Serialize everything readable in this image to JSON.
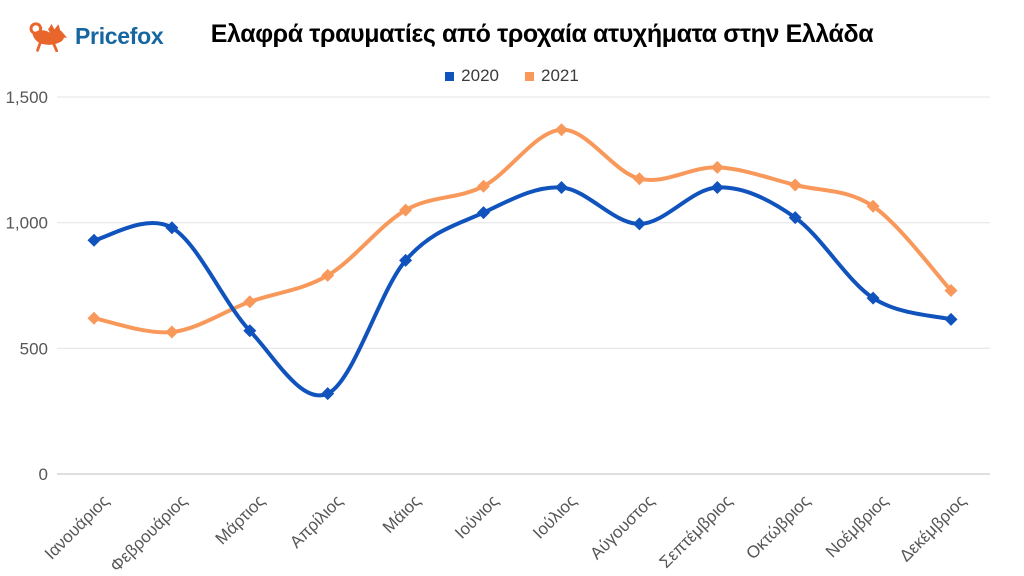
{
  "header": {
    "logo_text": "Pricefox",
    "title": "Ελαφρά τραυματίες από τροχαία ατυχήματα στην Ελλάδα"
  },
  "colors": {
    "background": "#FFFFFF",
    "title_text": "#000000",
    "logo_orange": "#E8652C",
    "logo_text_blue": "#18669F",
    "grid": "#E4E4E4",
    "axis_line": "#BFBFBF",
    "tick_text": "#575757",
    "legend_text": "#3C3C3C"
  },
  "chart_data": {
    "type": "line",
    "title": "Ελαφρά τραυματίες από τροχαία ατυχήματα στην Ελλάδα",
    "categories": [
      "Ιανουάριος",
      "Φεβρουάριος",
      "Μάρτιος",
      "Απρίλιος",
      "Μάιος",
      "Ιούνιος",
      "Ιούλιος",
      "Αύγουστος",
      "Σεπτέμβριος",
      "Οκτώβριος",
      "Νοέμβριος",
      "Δεκέμβριος"
    ],
    "series": [
      {
        "name": "2020",
        "color": "#1153BD",
        "values": [
          930,
          980,
          570,
          320,
          850,
          1040,
          1140,
          995,
          1140,
          1020,
          700,
          615
        ]
      },
      {
        "name": "2021",
        "color": "#F8995B",
        "values": [
          620,
          565,
          685,
          790,
          1050,
          1145,
          1370,
          1175,
          1220,
          1150,
          1065,
          730
        ]
      }
    ],
    "xlabel": "",
    "ylabel": "",
    "ylim": [
      0,
      1500
    ],
    "yticks": [
      0,
      500,
      1000,
      1500
    ],
    "ytick_labels": [
      "0",
      "500",
      "1,000",
      "1,500"
    ],
    "grid": "horizontal",
    "legend_position": "top-center",
    "curve": "smooth",
    "marker": "diamond",
    "x_label_rotation": -45
  }
}
